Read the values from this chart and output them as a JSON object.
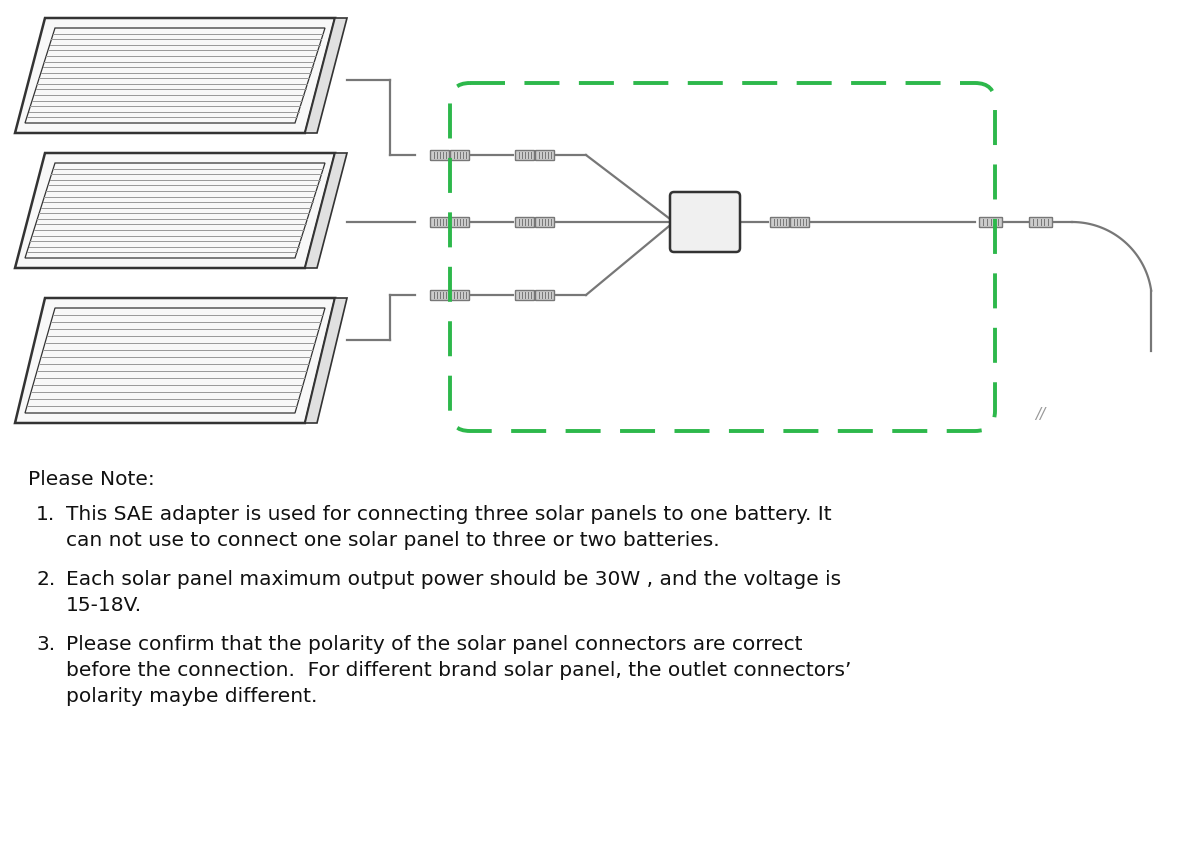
{
  "bg_color": "#ffffff",
  "panel_color": "#ffffff",
  "panel_border_color": "#333333",
  "panel_line_color": "#999999",
  "wire_color": "#777777",
  "green_dashed_color": "#2db84b",
  "text_color": "#111111",
  "note_title": "Please Note:",
  "note1_num": "1.",
  "note1_line1": "This SAE adapter is used for connecting three solar panels to one battery. It",
  "note1_line2": "can not use to connect one solar panel to three or two batteries.",
  "note2_num": "2.",
  "note2_line1": "Each solar panel maximum output power should be 30W , and the voltage is",
  "note2_line2": "15-18V.",
  "note3_num": "3.",
  "note3_line1": "Please confirm that the polarity of the solar panel connectors are correct",
  "note3_line2": "before the connection.  For different brand solar panel, the outlet connectors’",
  "note3_line3": "polarity maybe different.",
  "double_slash": "//",
  "font_size_note": 14.5,
  "font_size_title": 15
}
